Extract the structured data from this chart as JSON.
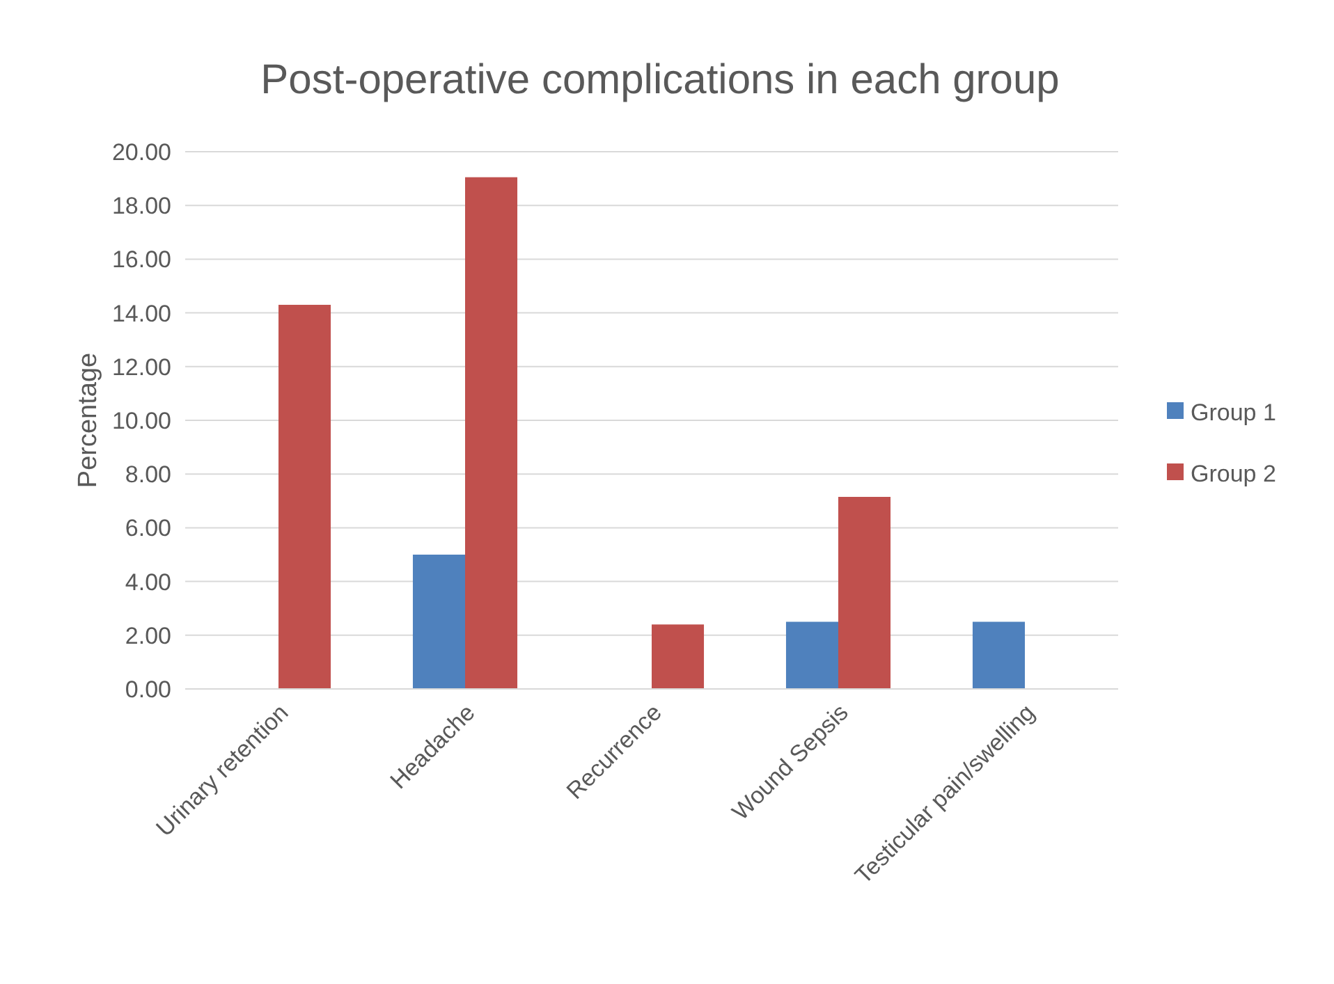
{
  "chart_data": {
    "type": "bar",
    "title": "Post-operative complications in each group",
    "ylabel": "Percentage",
    "categories": [
      "Urinary retention",
      "Headache",
      "Recurrence",
      "Wound Sepsis",
      "Testicular pain/swelling"
    ],
    "series": [
      {
        "name": "Group 1",
        "color": "#4f81bd",
        "values": [
          0,
          5.0,
          0,
          2.5,
          2.5
        ]
      },
      {
        "name": "Group 2",
        "color": "#c0504d",
        "values": [
          14.3,
          19.05,
          2.4,
          7.15,
          0
        ]
      }
    ],
    "ylim": [
      0,
      20
    ],
    "yticks": [
      {
        "value": 0,
        "label": "0.00"
      },
      {
        "value": 2,
        "label": "2.00"
      },
      {
        "value": 4,
        "label": "4.00"
      },
      {
        "value": 6,
        "label": "6.00"
      },
      {
        "value": 8,
        "label": "8.00"
      },
      {
        "value": 10,
        "label": "10.00"
      },
      {
        "value": 12,
        "label": "12.00"
      },
      {
        "value": 14,
        "label": "14.00"
      },
      {
        "value": 16,
        "label": "16.00"
      },
      {
        "value": 18,
        "label": "18.00"
      },
      {
        "value": 20,
        "label": "20.00"
      }
    ],
    "grid": true,
    "legend": "right"
  }
}
